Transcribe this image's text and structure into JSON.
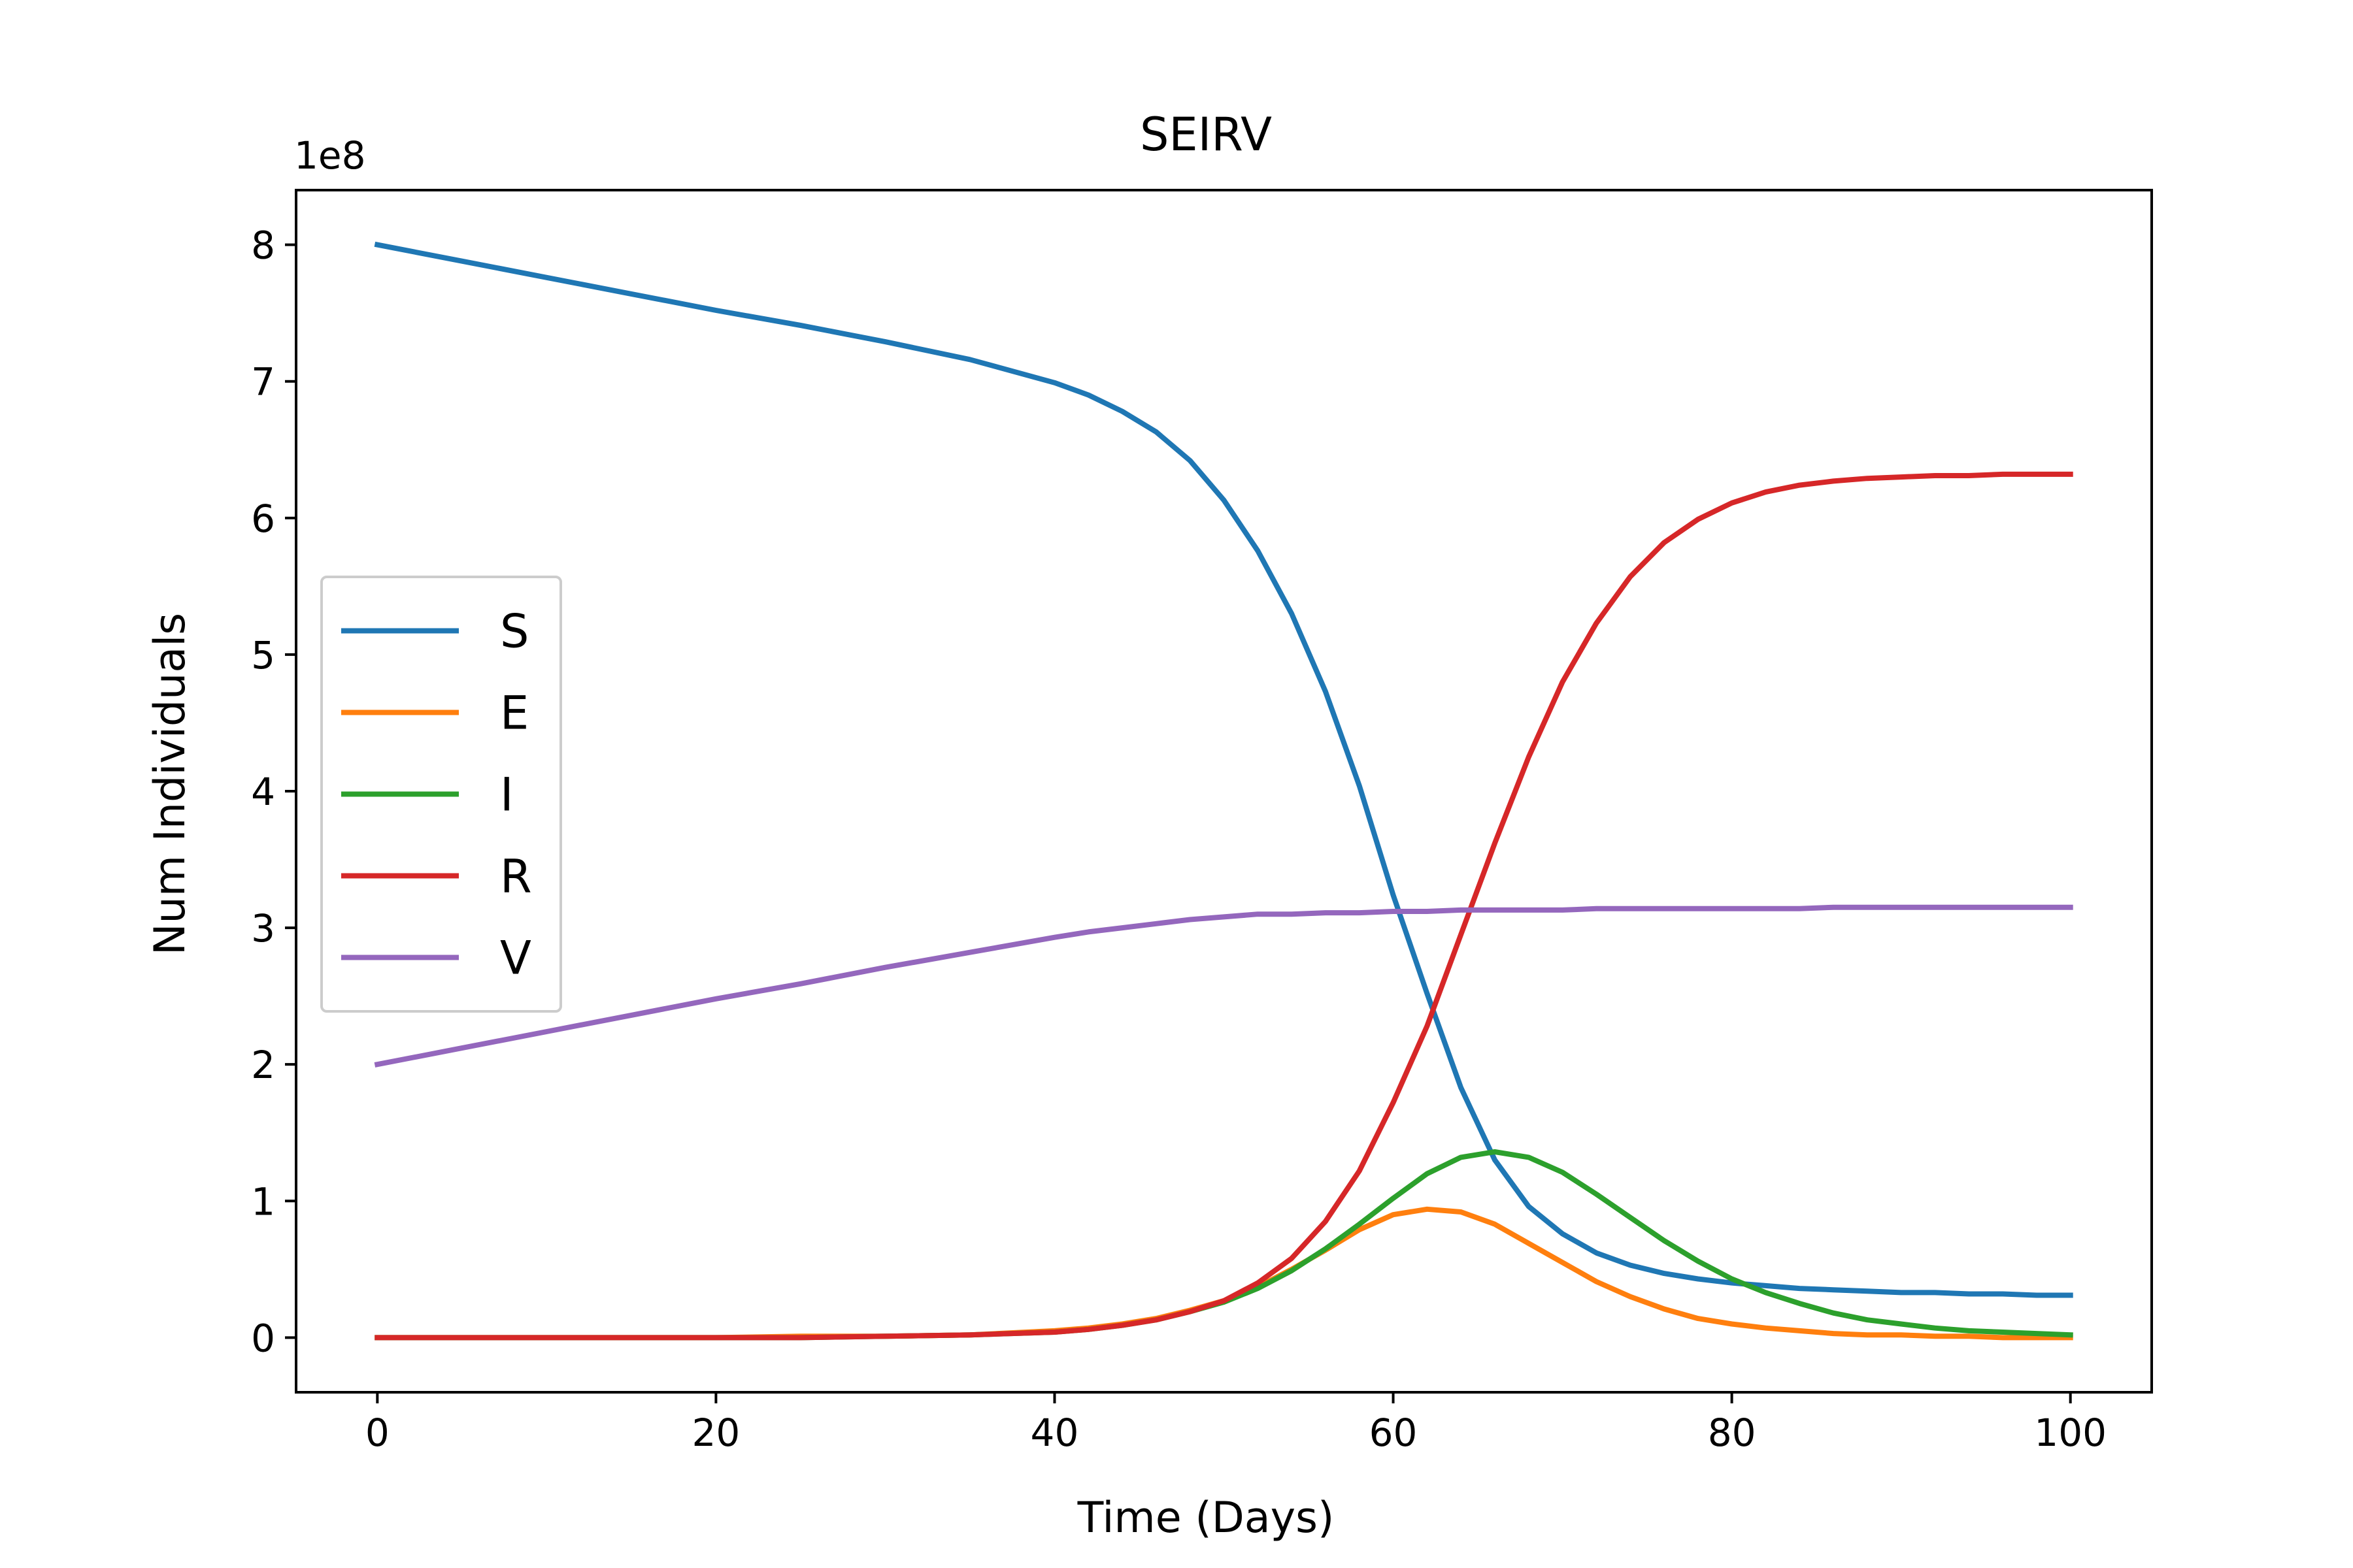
{
  "chart_data": {
    "type": "line",
    "title": "SEIRV",
    "xlabel": "Time (Days)",
    "ylabel": "Num Individuals",
    "offset_text": "1e8",
    "xlim": [
      -4.8,
      104.8
    ],
    "ylim": [
      -0.4,
      8.4
    ],
    "xticks": [
      0,
      20,
      40,
      60,
      80,
      100
    ],
    "yticks": [
      0,
      1,
      2,
      3,
      4,
      5,
      6,
      7,
      8
    ],
    "grid": false,
    "legend_position": "center-left",
    "x": [
      0,
      5,
      10,
      15,
      20,
      25,
      30,
      35,
      40,
      42,
      44,
      46,
      48,
      50,
      52,
      54,
      56,
      58,
      60,
      62,
      64,
      66,
      68,
      70,
      72,
      74,
      76,
      78,
      80,
      82,
      84,
      86,
      88,
      90,
      92,
      94,
      96,
      98,
      100
    ],
    "series": [
      {
        "name": "S",
        "color": "#1f77b4",
        "values": [
          8.0,
          7.88,
          7.76,
          7.64,
          7.52,
          7.41,
          7.29,
          7.16,
          6.99,
          6.9,
          6.78,
          6.63,
          6.42,
          6.13,
          5.76,
          5.3,
          4.73,
          4.04,
          3.24,
          2.52,
          1.83,
          1.3,
          0.96,
          0.76,
          0.62,
          0.53,
          0.47,
          0.43,
          0.4,
          0.38,
          0.36,
          0.35,
          0.34,
          0.33,
          0.33,
          0.32,
          0.32,
          0.31,
          0.31
        ]
      },
      {
        "name": "E",
        "color": "#ff7f0e",
        "values": [
          0.0,
          0.0,
          0.0,
          0.0,
          0.0,
          0.01,
          0.01,
          0.02,
          0.05,
          0.07,
          0.1,
          0.14,
          0.2,
          0.27,
          0.37,
          0.5,
          0.64,
          0.79,
          0.9,
          0.94,
          0.92,
          0.83,
          0.69,
          0.55,
          0.41,
          0.3,
          0.21,
          0.14,
          0.1,
          0.07,
          0.05,
          0.03,
          0.02,
          0.02,
          0.01,
          0.01,
          0.0,
          0.0,
          0.0
        ]
      },
      {
        "name": "I",
        "color": "#2ca02c",
        "values": [
          0.0,
          0.0,
          0.0,
          0.0,
          0.0,
          0.0,
          0.01,
          0.02,
          0.04,
          0.06,
          0.09,
          0.13,
          0.19,
          0.26,
          0.36,
          0.49,
          0.65,
          0.83,
          1.02,
          1.2,
          1.32,
          1.36,
          1.32,
          1.21,
          1.05,
          0.88,
          0.71,
          0.56,
          0.43,
          0.33,
          0.25,
          0.18,
          0.13,
          0.1,
          0.07,
          0.05,
          0.04,
          0.03,
          0.02
        ]
      },
      {
        "name": "R",
        "color": "#d62728",
        "values": [
          0.0,
          0.0,
          0.0,
          0.0,
          0.0,
          0.0,
          0.01,
          0.02,
          0.04,
          0.06,
          0.09,
          0.13,
          0.19,
          0.27,
          0.4,
          0.58,
          0.85,
          1.22,
          1.72,
          2.28,
          2.95,
          3.62,
          4.25,
          4.8,
          5.23,
          5.57,
          5.82,
          5.99,
          6.11,
          6.19,
          6.24,
          6.27,
          6.29,
          6.3,
          6.31,
          6.31,
          6.32,
          6.32,
          6.32
        ]
      },
      {
        "name": "V",
        "color": "#9467bd",
        "values": [
          2.0,
          2.12,
          2.24,
          2.36,
          2.48,
          2.59,
          2.71,
          2.82,
          2.93,
          2.97,
          3.0,
          3.03,
          3.06,
          3.08,
          3.1,
          3.1,
          3.11,
          3.11,
          3.12,
          3.12,
          3.13,
          3.13,
          3.13,
          3.13,
          3.14,
          3.14,
          3.14,
          3.14,
          3.14,
          3.14,
          3.14,
          3.15,
          3.15,
          3.15,
          3.15,
          3.15,
          3.15,
          3.15,
          3.15
        ]
      }
    ]
  }
}
